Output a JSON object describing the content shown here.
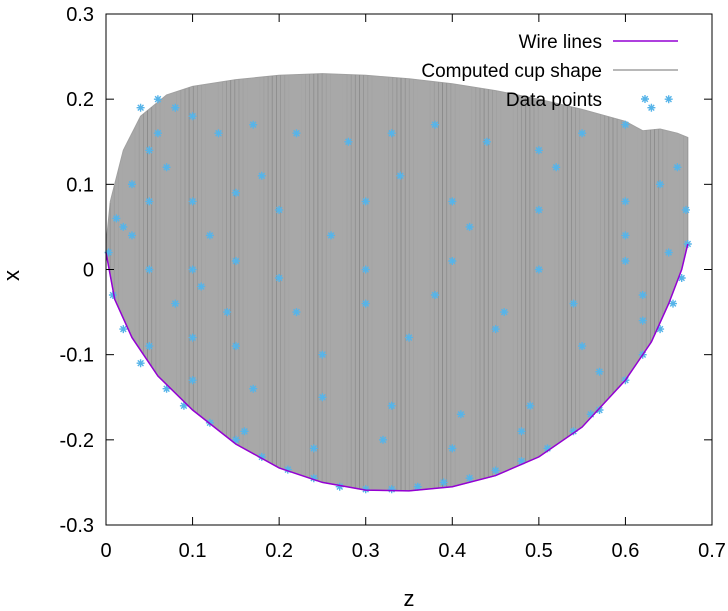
{
  "chart_data": {
    "type": "scatter",
    "title": "",
    "xlabel": "z",
    "ylabel": "x",
    "xlim": [
      0,
      0.7
    ],
    "ylim": [
      -0.3,
      0.3
    ],
    "x_ticks": [
      "0",
      "0.1",
      "0.2",
      "0.3",
      "0.4",
      "0.5",
      "0.6",
      "0.7"
    ],
    "y_ticks": [
      "-0.3",
      "-0.2",
      "-0.1",
      "0",
      "0.1",
      "0.2",
      "0.3"
    ],
    "grid": false,
    "legend_position": "top-right",
    "legend": [
      {
        "label": "Wire lines",
        "color": "#9400d3",
        "style": "line"
      },
      {
        "label": "Computed cup shape",
        "color": "#a0a0a0",
        "style": "line"
      },
      {
        "label": "Data points",
        "color": "#56b4e9",
        "style": "asterisk"
      }
    ],
    "series": [
      {
        "name": "Wire lines",
        "kind": "line",
        "color": "#9400d3",
        "x": [
          0.0,
          0.01,
          0.03,
          0.06,
          0.1,
          0.15,
          0.2,
          0.25,
          0.3,
          0.35,
          0.4,
          0.45,
          0.5,
          0.55,
          0.6,
          0.63,
          0.65,
          0.665,
          0.672
        ],
        "y": [
          0.02,
          -0.035,
          -0.08,
          -0.125,
          -0.165,
          -0.205,
          -0.233,
          -0.25,
          -0.259,
          -0.26,
          -0.255,
          -0.242,
          -0.22,
          -0.185,
          -0.13,
          -0.085,
          -0.04,
          0.0,
          0.03
        ]
      },
      {
        "name": "Computed cup shape",
        "kind": "surface",
        "color": "#a0a0a0",
        "x": [
          0.0,
          0.005,
          0.02,
          0.04,
          0.07,
          0.1,
          0.15,
          0.2,
          0.25,
          0.3,
          0.35,
          0.4,
          0.45,
          0.5,
          0.55,
          0.6,
          0.62,
          0.64,
          0.66,
          0.672
        ],
        "y": [
          0.03,
          0.08,
          0.14,
          0.18,
          0.205,
          0.215,
          0.223,
          0.228,
          0.23,
          0.228,
          0.224,
          0.218,
          0.21,
          0.2,
          0.188,
          0.174,
          0.163,
          0.165,
          0.16,
          0.155
        ]
      },
      {
        "name": "Data points",
        "kind": "scatter",
        "color": "#56b4e9",
        "x": [
          0.003,
          0.008,
          0.012,
          0.02,
          0.03,
          0.04,
          0.05,
          0.07,
          0.09,
          0.12,
          0.15,
          0.18,
          0.21,
          0.24,
          0.27,
          0.3,
          0.33,
          0.36,
          0.39,
          0.42,
          0.45,
          0.48,
          0.51,
          0.54,
          0.57,
          0.6,
          0.62,
          0.64,
          0.655,
          0.665,
          0.672,
          0.67,
          0.66,
          0.04,
          0.06,
          0.08,
          0.1,
          0.13,
          0.17,
          0.22,
          0.28,
          0.33,
          0.38,
          0.44,
          0.5,
          0.55,
          0.6,
          0.63,
          0.65,
          0.05,
          0.1,
          0.15,
          0.2,
          0.3,
          0.4,
          0.5,
          0.6,
          0.05,
          0.1,
          0.15,
          0.2,
          0.3,
          0.4,
          0.5,
          0.6,
          0.65,
          0.05,
          0.1,
          0.15,
          0.25,
          0.35,
          0.45,
          0.55,
          0.62,
          0.03,
          0.07,
          0.12,
          0.18,
          0.26,
          0.34,
          0.42,
          0.52,
          0.6,
          0.64,
          0.08,
          0.14,
          0.22,
          0.3,
          0.38,
          0.46,
          0.54,
          0.62,
          0.1,
          0.17,
          0.25,
          0.33,
          0.41,
          0.49,
          0.57,
          0.02,
          0.06,
          0.11,
          0.16,
          0.24,
          0.32,
          0.4,
          0.48,
          0.56
        ],
        "y": [
          0.02,
          -0.03,
          0.06,
          -0.07,
          0.1,
          -0.11,
          0.14,
          -0.14,
          -0.16,
          -0.18,
          -0.2,
          -0.22,
          -0.235,
          -0.245,
          -0.255,
          -0.258,
          -0.258,
          -0.255,
          -0.25,
          -0.245,
          -0.236,
          -0.225,
          -0.21,
          -0.19,
          -0.165,
          -0.13,
          -0.1,
          -0.07,
          -0.04,
          -0.01,
          0.03,
          0.07,
          0.12,
          0.19,
          0.2,
          0.19,
          0.18,
          0.16,
          0.17,
          0.16,
          0.15,
          0.16,
          0.17,
          0.15,
          0.14,
          0.16,
          0.17,
          0.19,
          0.2,
          0.08,
          0.08,
          0.09,
          0.07,
          0.08,
          0.08,
          0.07,
          0.08,
          0.0,
          0.0,
          0.01,
          -0.01,
          0.0,
          0.01,
          0.0,
          0.01,
          0.02,
          -0.09,
          -0.08,
          -0.09,
          -0.1,
          -0.08,
          -0.07,
          -0.09,
          -0.06,
          0.04,
          0.12,
          0.04,
          0.11,
          0.04,
          0.11,
          0.05,
          0.12,
          0.04,
          0.1,
          -0.04,
          -0.05,
          -0.05,
          -0.04,
          -0.03,
          -0.05,
          -0.04,
          -0.03,
          -0.13,
          -0.14,
          -0.15,
          -0.16,
          -0.17,
          -0.16,
          -0.12,
          0.05,
          0.16,
          -0.02,
          -0.19,
          -0.21,
          -0.2,
          -0.21,
          -0.19,
          -0.17
        ]
      }
    ]
  }
}
